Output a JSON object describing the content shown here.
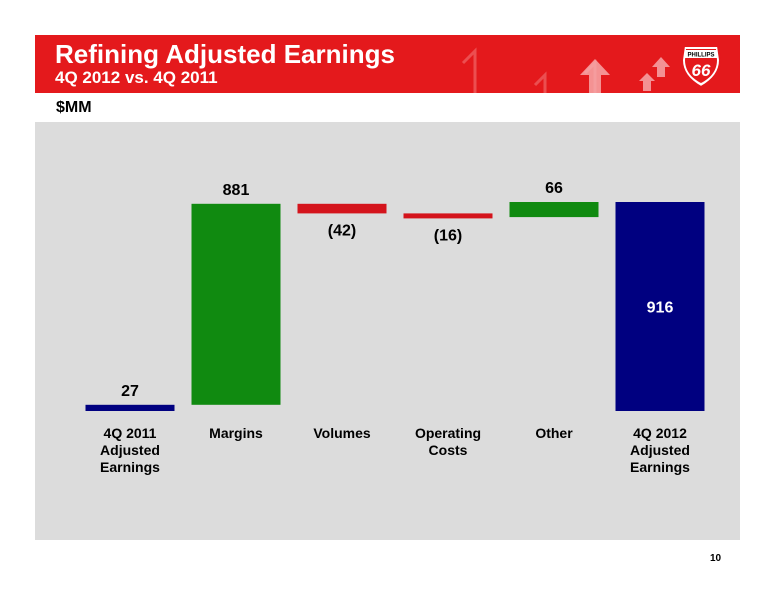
{
  "header": {
    "title": "Refining Adjusted Earnings",
    "subtitle": "4Q 2012 vs. 4Q 2011",
    "logo_text": "PHILLIPS 66"
  },
  "unit_label": "$MM",
  "page_number": "10",
  "colors": {
    "banner": "#e4191c",
    "total": "#000080",
    "increase": "#108a10",
    "decrease": "#d4141c",
    "plot_background": "#dcdcdc"
  },
  "chart_data": {
    "type": "bar",
    "subtype": "waterfall",
    "title": "Refining Adjusted Earnings",
    "ylabel": "$MM",
    "categories": [
      [
        "4Q 2011",
        "Adjusted",
        "Earnings"
      ],
      [
        "Margins"
      ],
      [
        "Volumes"
      ],
      [
        "Operating",
        "Costs"
      ],
      [
        "Other"
      ],
      [
        "4Q 2012",
        "Adjusted",
        "Earnings"
      ]
    ],
    "values": [
      27,
      881,
      -42,
      -16,
      66,
      916
    ],
    "kinds": [
      "total",
      "increase",
      "decrease",
      "decrease",
      "increase",
      "total"
    ],
    "value_labels": [
      "27",
      "881",
      "(42)",
      "(16)",
      "66",
      "916"
    ],
    "grid": false,
    "legend": "none"
  }
}
